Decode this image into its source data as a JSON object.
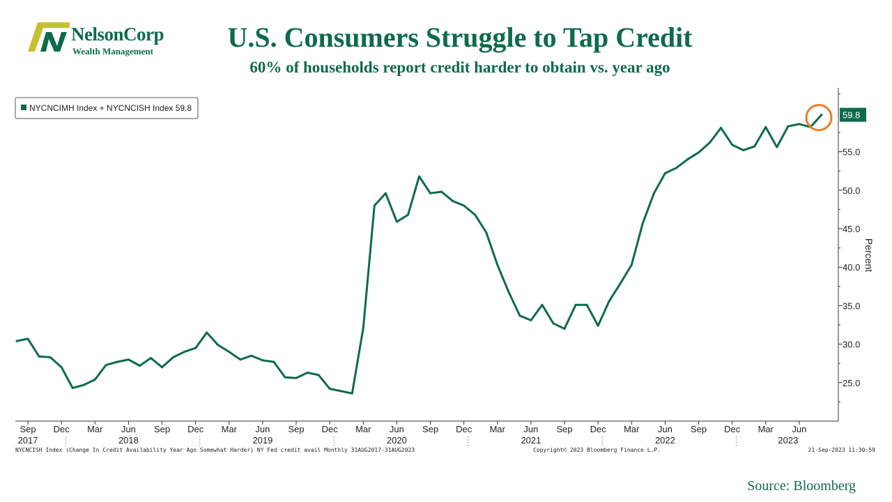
{
  "brand": {
    "name": "NelsonCorp",
    "tagline": "Wealth Management"
  },
  "header": {
    "title": "U.S. Consumers Struggle to Tap Credit",
    "subtitle": "60% of households report credit harder to obtain vs. year ago"
  },
  "footer": {
    "index_note": "NYCNCISH Index (Change In Credit Availability Year Ago Somewhat Harder) NY Fed credit avail  Monthly 31AUG2017-31AUG2023",
    "copyright": "Copyright© 2023 Bloomberg Finance L.P.",
    "timestamp": "21-Sep-2023 11:30:59",
    "source": "Source:  Bloomberg"
  },
  "colors": {
    "line": "#0e6b4a",
    "highlight_circle": "#e87f2a",
    "logo_accent": "#c5c232"
  },
  "chart_data": {
    "type": "line",
    "legend": "NYCNCIMH Index + NYCNCISH Index 59.8",
    "legend_position": "top-left",
    "last_value_label": "59.8",
    "ylabel": "Percent",
    "ylim": [
      20,
      63.3
    ],
    "y_axis_side": "right",
    "y_ticks": [
      "25.0",
      "30.0",
      "35.0",
      "40.0",
      "45.0",
      "50.0",
      "55.0"
    ],
    "grid": false,
    "x_start": "2017-08",
    "x_end": "2023-08",
    "month_ticks": [
      {
        "label": "Sep",
        "x": "2017-09"
      },
      {
        "label": "Dec",
        "x": "2017-12"
      },
      {
        "label": "Mar",
        "x": "2018-03"
      },
      {
        "label": "Jun",
        "x": "2018-06"
      },
      {
        "label": "Sep",
        "x": "2018-09"
      },
      {
        "label": "Dec",
        "x": "2018-12"
      },
      {
        "label": "Mar",
        "x": "2019-03"
      },
      {
        "label": "Jun",
        "x": "2019-06"
      },
      {
        "label": "Sep",
        "x": "2019-09"
      },
      {
        "label": "Dec",
        "x": "2019-12"
      },
      {
        "label": "Mar",
        "x": "2020-03"
      },
      {
        "label": "Jun",
        "x": "2020-06"
      },
      {
        "label": "Sep",
        "x": "2020-09"
      },
      {
        "label": "Dec",
        "x": "2020-12"
      },
      {
        "label": "Mar",
        "x": "2021-03"
      },
      {
        "label": "Jun",
        "x": "2021-06"
      },
      {
        "label": "Sep",
        "x": "2021-09"
      },
      {
        "label": "Dec",
        "x": "2021-12"
      },
      {
        "label": "Mar",
        "x": "2022-03"
      },
      {
        "label": "Jun",
        "x": "2022-06"
      },
      {
        "label": "Sep",
        "x": "2022-09"
      },
      {
        "label": "Dec",
        "x": "2022-12"
      },
      {
        "label": "Mar",
        "x": "2023-03"
      },
      {
        "label": "Jun",
        "x": "2023-06"
      }
    ],
    "year_labels": [
      {
        "label": "2017",
        "x": "2017-09"
      },
      {
        "label": "2018",
        "x": "2018-06"
      },
      {
        "label": "2019",
        "x": "2019-06"
      },
      {
        "label": "2020",
        "x": "2020-06"
      },
      {
        "label": "2021",
        "x": "2021-06"
      },
      {
        "label": "2022",
        "x": "2022-06"
      },
      {
        "label": "2023",
        "x": "2023-05"
      }
    ],
    "series": [
      {
        "values": [
          {
            "x": "2017-08",
            "y": 30.4
          },
          {
            "x": "2017-09",
            "y": 30.7
          },
          {
            "x": "2017-10",
            "y": 28.4
          },
          {
            "x": "2017-11",
            "y": 28.3
          },
          {
            "x": "2017-12",
            "y": 27.0
          },
          {
            "x": "2018-01",
            "y": 24.3
          },
          {
            "x": "2018-02",
            "y": 24.7
          },
          {
            "x": "2018-03",
            "y": 25.4
          },
          {
            "x": "2018-04",
            "y": 27.3
          },
          {
            "x": "2018-05",
            "y": 27.7
          },
          {
            "x": "2018-06",
            "y": 28.0
          },
          {
            "x": "2018-07",
            "y": 27.2
          },
          {
            "x": "2018-08",
            "y": 28.2
          },
          {
            "x": "2018-09",
            "y": 27.0
          },
          {
            "x": "2018-10",
            "y": 28.3
          },
          {
            "x": "2018-11",
            "y": 29.0
          },
          {
            "x": "2018-12",
            "y": 29.5
          },
          {
            "x": "2019-01",
            "y": 31.5
          },
          {
            "x": "2019-02",
            "y": 29.9
          },
          {
            "x": "2019-03",
            "y": 29.0
          },
          {
            "x": "2019-04",
            "y": 28.0
          },
          {
            "x": "2019-05",
            "y": 28.5
          },
          {
            "x": "2019-06",
            "y": 27.9
          },
          {
            "x": "2019-07",
            "y": 27.7
          },
          {
            "x": "2019-08",
            "y": 25.7
          },
          {
            "x": "2019-09",
            "y": 25.6
          },
          {
            "x": "2019-10",
            "y": 26.3
          },
          {
            "x": "2019-11",
            "y": 26.0
          },
          {
            "x": "2019-12",
            "y": 24.2
          },
          {
            "x": "2020-01",
            "y": 23.9
          },
          {
            "x": "2020-02",
            "y": 23.6
          },
          {
            "x": "2020-03",
            "y": 32.1
          },
          {
            "x": "2020-04",
            "y": 48.0
          },
          {
            "x": "2020-05",
            "y": 49.6
          },
          {
            "x": "2020-06",
            "y": 45.9
          },
          {
            "x": "2020-07",
            "y": 46.8
          },
          {
            "x": "2020-08",
            "y": 51.8
          },
          {
            "x": "2020-09",
            "y": 49.6
          },
          {
            "x": "2020-10",
            "y": 49.8
          },
          {
            "x": "2020-11",
            "y": 48.6
          },
          {
            "x": "2020-12",
            "y": 48.0
          },
          {
            "x": "2021-01",
            "y": 46.8
          },
          {
            "x": "2021-02",
            "y": 44.5
          },
          {
            "x": "2021-03",
            "y": 40.3
          },
          {
            "x": "2021-04",
            "y": 36.8
          },
          {
            "x": "2021-05",
            "y": 33.7
          },
          {
            "x": "2021-06",
            "y": 33.1
          },
          {
            "x": "2021-07",
            "y": 35.1
          },
          {
            "x": "2021-08",
            "y": 32.7
          },
          {
            "x": "2021-09",
            "y": 32.0
          },
          {
            "x": "2021-10",
            "y": 35.1
          },
          {
            "x": "2021-11",
            "y": 35.1
          },
          {
            "x": "2021-12",
            "y": 32.4
          },
          {
            "x": "2022-01",
            "y": 35.6
          },
          {
            "x": "2022-02",
            "y": 37.9
          },
          {
            "x": "2022-03",
            "y": 40.3
          },
          {
            "x": "2022-04",
            "y": 45.7
          },
          {
            "x": "2022-05",
            "y": 49.6
          },
          {
            "x": "2022-06",
            "y": 52.2
          },
          {
            "x": "2022-07",
            "y": 52.9
          },
          {
            "x": "2022-08",
            "y": 54.0
          },
          {
            "x": "2022-09",
            "y": 54.9
          },
          {
            "x": "2022-10",
            "y": 56.2
          },
          {
            "x": "2022-11",
            "y": 58.1
          },
          {
            "x": "2022-12",
            "y": 55.9
          },
          {
            "x": "2023-01",
            "y": 55.2
          },
          {
            "x": "2023-02",
            "y": 55.7
          },
          {
            "x": "2023-03",
            "y": 58.2
          },
          {
            "x": "2023-04",
            "y": 55.6
          },
          {
            "x": "2023-05",
            "y": 58.3
          },
          {
            "x": "2023-06",
            "y": 58.6
          },
          {
            "x": "2023-07",
            "y": 58.2
          },
          {
            "x": "2023-08",
            "y": 59.8
          }
        ]
      }
    ]
  }
}
